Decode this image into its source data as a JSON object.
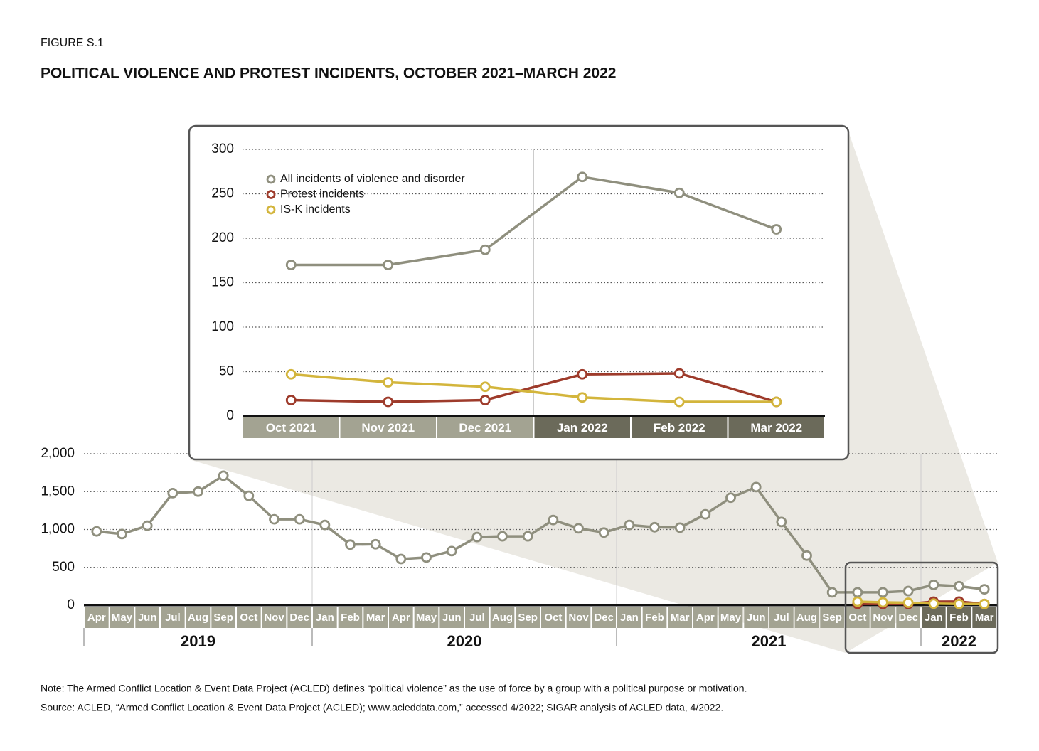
{
  "figure_label": "FIGURE S.1",
  "title": "POLITICAL VIOLENCE AND PROTEST INCIDENTS, OCTOBER 2021–MARCH 2022",
  "note": "Note: The Armed Conflict Location & Event Data Project (ACLED) defines “political violence” as the use of force by a group with a political purpose or motivation.",
  "source": "Source: ACLED, “Armed Conflict Location & Event Data Project (ACLED); www.acleddata.com,” accessed 4/2022; SIGAR analysis of ACLED data, 4/2022.",
  "chart_data": [
    {
      "type": "line",
      "categories": [
        "Apr",
        "May",
        "Jun",
        "Jul",
        "Aug",
        "Sep",
        "Oct",
        "Nov",
        "Dec",
        "Jan",
        "Feb",
        "Mar",
        "Apr",
        "May",
        "Jun",
        "Jul",
        "Aug",
        "Sep",
        "Oct",
        "Nov",
        "Dec",
        "Jan",
        "Feb",
        "Mar",
        "Apr",
        "May",
        "Jun",
        "Jul",
        "Aug",
        "Sep",
        "Oct",
        "Nov",
        "Dec",
        "Jan",
        "Feb",
        "Mar"
      ],
      "x_groups": [
        {
          "label": "2019",
          "size": 9,
          "color": "#a3a392"
        },
        {
          "label": "2020",
          "size": 12,
          "color": "#a3a392"
        },
        {
          "label": "2021",
          "size": 12,
          "color": "#a3a392"
        },
        {
          "label": "2022",
          "size": 3,
          "color": "#6b6a5a"
        }
      ],
      "series": [
        {
          "color": "#8f8f7e",
          "values": [
            975,
            940,
            1050,
            1480,
            1500,
            1710,
            1445,
            1135,
            1135,
            1060,
            800,
            805,
            610,
            630,
            715,
            900,
            910,
            910,
            1125,
            1015,
            960,
            1060,
            1030,
            1025,
            1200,
            1420,
            1560,
            1100,
            655,
            170,
            170,
            170,
            187,
            269,
            251,
            210
          ]
        },
        {
          "color": "#9e3b2b",
          "values": [
            null,
            null,
            null,
            null,
            null,
            null,
            null,
            null,
            null,
            null,
            null,
            null,
            null,
            null,
            null,
            null,
            null,
            null,
            null,
            null,
            null,
            null,
            null,
            null,
            null,
            null,
            null,
            null,
            null,
            null,
            18,
            16,
            18,
            47,
            48,
            16
          ]
        },
        {
          "color": "#d3b53c",
          "values": [
            null,
            null,
            null,
            null,
            null,
            null,
            null,
            null,
            null,
            null,
            null,
            null,
            null,
            null,
            null,
            null,
            null,
            null,
            null,
            null,
            null,
            null,
            null,
            null,
            null,
            null,
            null,
            null,
            null,
            null,
            47,
            38,
            33,
            21,
            16,
            16
          ]
        }
      ],
      "ylim": [
        0,
        2000
      ],
      "yticks": [
        0,
        500,
        {
          "value": 1000,
          "label": "1,000"
        },
        {
          "value": 1500,
          "label": "1,500"
        },
        {
          "value": 2000,
          "label": "2,000"
        }
      ],
      "grid": true
    },
    {
      "type": "line",
      "categories": [
        "Oct 2021",
        "Nov 2021",
        "Dec 2021",
        "Jan 2022",
        "Feb 2022",
        "Mar 2022"
      ],
      "category_colors": [
        "#a3a392",
        "#a3a392",
        "#a3a392",
        "#6b6a5a",
        "#6b6a5a",
        "#6b6a5a"
      ],
      "series": [
        {
          "name": "All incidents of violence and disorder",
          "color": "#8f8f7e",
          "values": [
            170,
            170,
            187,
            269,
            251,
            210
          ]
        },
        {
          "name": "Protest incidents",
          "color": "#9e3b2b",
          "values": [
            18,
            16,
            18,
            47,
            48,
            16
          ]
        },
        {
          "name": "IS-K incidents",
          "color": "#d3b53c",
          "values": [
            47,
            38,
            33,
            21,
            16,
            16
          ]
        }
      ],
      "ylim": [
        0,
        300
      ],
      "yticks": [
        0,
        50,
        100,
        150,
        200,
        250,
        300
      ],
      "grid": true,
      "legend": "upper-left"
    }
  ]
}
